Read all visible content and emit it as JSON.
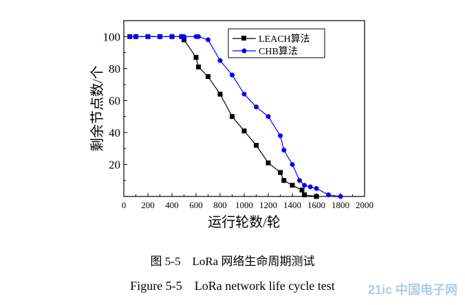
{
  "chart_data": {
    "type": "line",
    "title": "",
    "xlabel": "运行轮数/轮",
    "ylabel": "剩余节点数/个",
    "xlim": [
      0,
      2000
    ],
    "ylim": [
      0,
      110
    ],
    "xticks": [
      0,
      200,
      400,
      600,
      800,
      1000,
      1200,
      1400,
      1600,
      1800,
      2000
    ],
    "yticks": [
      20,
      40,
      60,
      80,
      100
    ],
    "grid": false,
    "legend_position": "top-right",
    "series": [
      {
        "name": "LEACH算法",
        "color": "#000000",
        "marker": "square",
        "x": [
          50,
          100,
          200,
          300,
          400,
          480,
          500,
          600,
          620,
          700,
          800,
          900,
          1000,
          1100,
          1200,
          1300,
          1330,
          1400,
          1480,
          1500,
          1600
        ],
        "y": [
          100,
          100,
          100,
          100,
          100,
          100,
          98,
          87,
          81,
          75,
          64,
          50,
          41,
          32,
          21,
          15,
          10,
          7,
          4,
          1,
          0
        ]
      },
      {
        "name": "CHB算法",
        "color": "#0000ff",
        "marker": "circle",
        "x": [
          50,
          100,
          200,
          300,
          400,
          480,
          500,
          600,
          620,
          700,
          800,
          900,
          1000,
          1100,
          1200,
          1300,
          1330,
          1400,
          1460,
          1500,
          1550,
          1600,
          1700,
          1800
        ],
        "y": [
          100,
          100,
          100,
          100,
          100,
          100,
          100,
          100,
          100,
          98,
          85,
          76,
          64,
          56,
          50,
          38,
          29,
          20,
          10,
          7,
          6,
          5,
          1,
          0
        ]
      }
    ]
  },
  "captions": {
    "chinese": "图 5-5　LoRa 网络生命周期测试",
    "english": "Figure 5-5　LoRa network life cycle test"
  },
  "watermark": {
    "text": "21ic 中国电子网"
  }
}
